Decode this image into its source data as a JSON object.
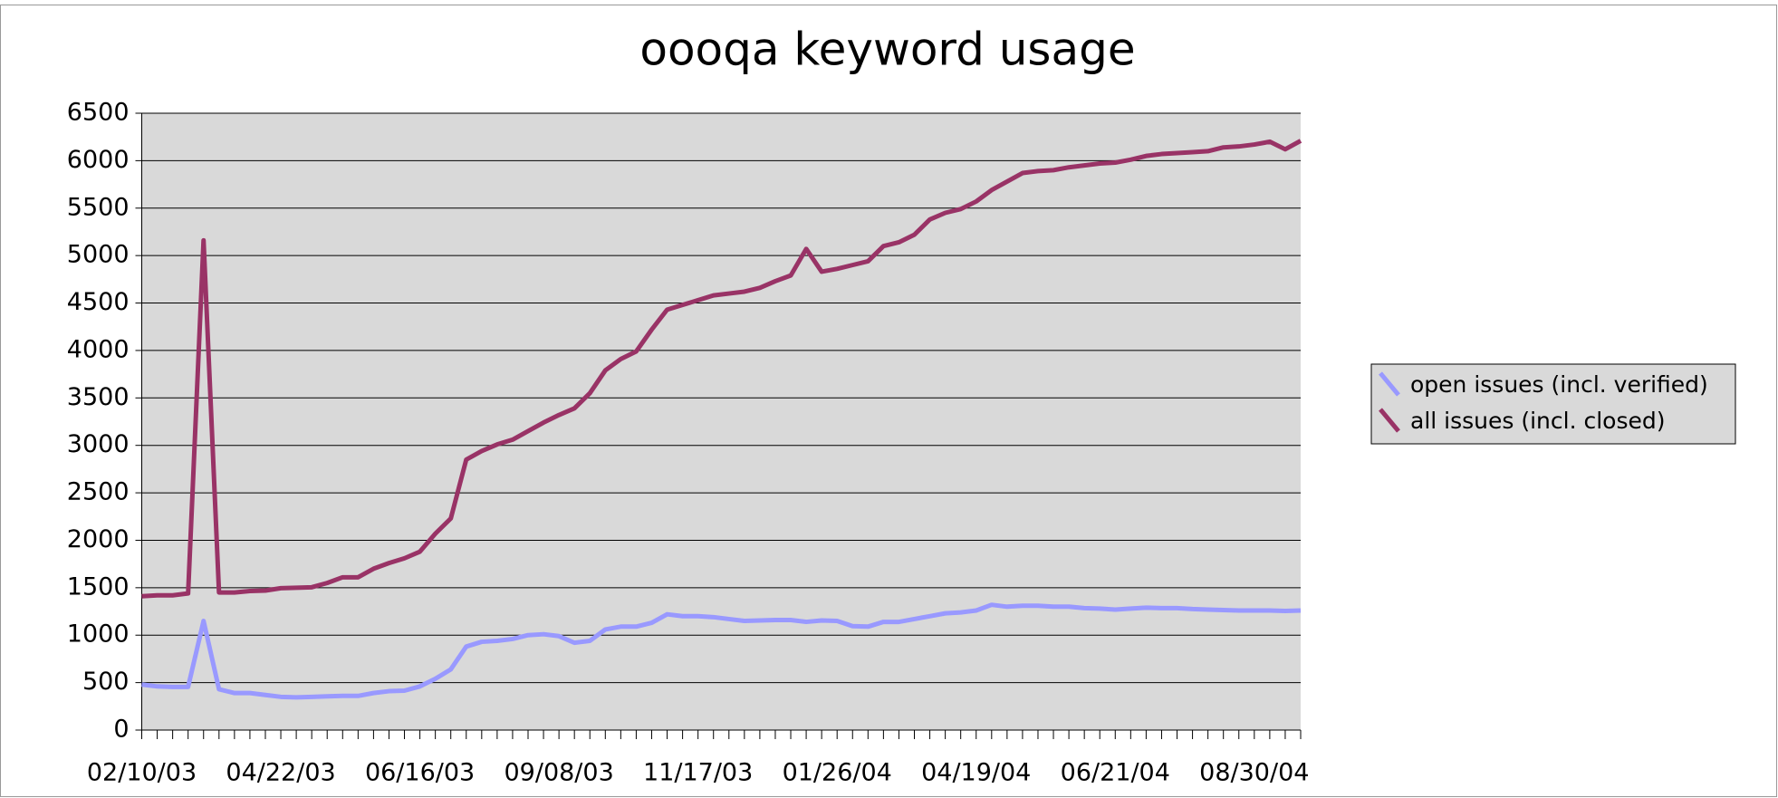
{
  "chart_data": {
    "type": "line",
    "title": "oooqa keyword usage",
    "categories": [
      "02/10/03",
      null,
      null,
      null,
      null,
      null,
      null,
      null,
      null,
      "04/22/03",
      null,
      null,
      null,
      null,
      null,
      null,
      null,
      null,
      "06/16/03",
      null,
      null,
      null,
      null,
      null,
      null,
      null,
      null,
      "09/08/03",
      null,
      null,
      null,
      null,
      null,
      null,
      null,
      null,
      "11/17/03",
      null,
      null,
      null,
      null,
      null,
      null,
      null,
      null,
      "01/26/04",
      null,
      null,
      null,
      null,
      null,
      null,
      null,
      null,
      "04/19/04",
      null,
      null,
      null,
      null,
      null,
      null,
      null,
      null,
      "06/21/04",
      null,
      null,
      null,
      null,
      null,
      null,
      null,
      null,
      "08/30/04",
      null,
      null,
      null
    ],
    "series": [
      {
        "name": "open issues (incl. verified)",
        "color": "#9999ff",
        "values": [
          480,
          460,
          455,
          455,
          1150,
          430,
          390,
          390,
          370,
          350,
          345,
          350,
          355,
          360,
          360,
          390,
          410,
          415,
          460,
          540,
          640,
          880,
          930,
          940,
          960,
          1000,
          1010,
          990,
          920,
          940,
          1060,
          1090,
          1090,
          1130,
          1220,
          1200,
          1200,
          1190,
          1170,
          1150,
          1155,
          1160,
          1160,
          1140,
          1155,
          1150,
          1095,
          1090,
          1140,
          1140,
          1170,
          1200,
          1230,
          1240,
          1260,
          1320,
          1300,
          1310,
          1310,
          1300,
          1300,
          1285,
          1280,
          1270,
          1280,
          1290,
          1285,
          1285,
          1275,
          1270,
          1265,
          1260,
          1260,
          1260,
          1255,
          1260
        ]
      },
      {
        "name": "all issues (incl. closed)",
        "color": "#993366",
        "values": [
          1410,
          1420,
          1420,
          1440,
          5160,
          1450,
          1450,
          1465,
          1470,
          1495,
          1500,
          1505,
          1550,
          1610,
          1610,
          1700,
          1760,
          1810,
          1880,
          2070,
          2230,
          2850,
          2940,
          3010,
          3060,
          3150,
          3240,
          3320,
          3390,
          3550,
          3790,
          3910,
          3990,
          4220,
          4430,
          4480,
          4530,
          4580,
          4600,
          4620,
          4660,
          4730,
          4790,
          5070,
          4830,
          4860,
          4900,
          4940,
          5100,
          5140,
          5220,
          5380,
          5450,
          5490,
          5570,
          5690,
          5780,
          5870,
          5890,
          5900,
          5930,
          5950,
          5970,
          5980,
          6010,
          6050,
          6070,
          6080,
          6090,
          6100,
          6140,
          6150,
          6170,
          6200,
          6120,
          6210
        ]
      }
    ],
    "ylim": [
      0,
      6500
    ],
    "yticks": [
      0,
      500,
      1000,
      1500,
      2000,
      2500,
      3000,
      3500,
      4000,
      4500,
      5000,
      5500,
      6000,
      6500
    ],
    "grid": true,
    "legend": "right"
  }
}
